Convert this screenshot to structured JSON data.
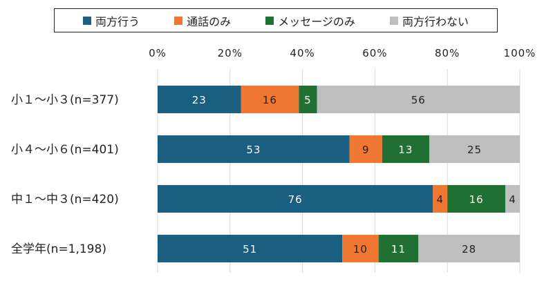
{
  "chart_data": {
    "type": "bar",
    "orientation": "horizontal",
    "stacked": true,
    "categories": [
      "小１～小３(n=377)",
      "小４～小６(n=401)",
      "中１～中３(n=420)",
      "全学年(n=1,198)"
    ],
    "series": [
      {
        "name": "両方行う",
        "color": "#1a5e80",
        "label_color": "#ffffff",
        "values": [
          23,
          53,
          76,
          51
        ]
      },
      {
        "name": "通話のみ",
        "color": "#ee7733",
        "label_color": "#222222",
        "values": [
          16,
          9,
          4,
          10
        ]
      },
      {
        "name": "メッセージのみ",
        "color": "#1f7032",
        "label_color": "#ffffff",
        "values": [
          5,
          13,
          16,
          11
        ]
      },
      {
        "name": "両方行わない",
        "color": "#bfbfbf",
        "label_color": "#222222",
        "values": [
          56,
          25,
          4,
          28
        ]
      }
    ],
    "xlim": [
      0,
      100
    ],
    "x_ticks": [
      "0%",
      "20%",
      "40%",
      "60%",
      "80%",
      "100%"
    ],
    "grid": true,
    "legend_position": "top",
    "xlabel": "",
    "ylabel": ""
  }
}
